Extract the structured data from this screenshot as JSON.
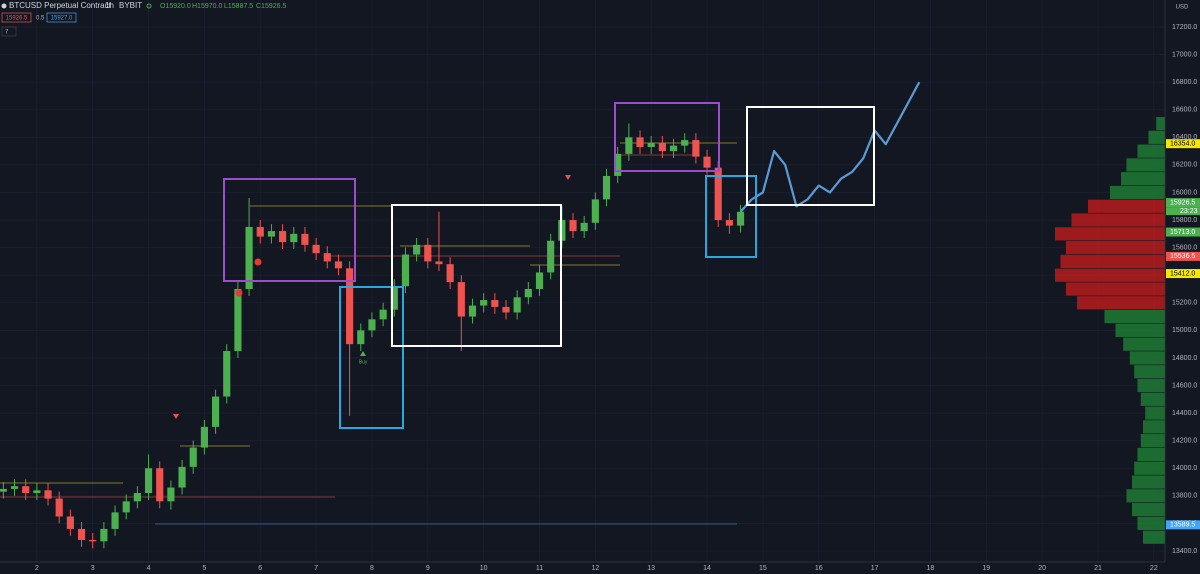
{
  "chart_data": {
    "type": "candlestick",
    "header": {
      "symbol": "BTCUSD Perpetual Contract",
      "interval": "1h",
      "exchange": "BYBIT",
      "ohlc": [
        "O15920.0",
        "H15970.0",
        "L15887.5",
        "C15926.5"
      ],
      "sell": "15926.5",
      "spread": "0.5",
      "buy": "15927.0",
      "indicators": "7"
    },
    "currency": "USD",
    "annotations": [
      "Buy"
    ],
    "up_color": "#4caf50",
    "down_color": "#ef5350",
    "grid": true,
    "xlim": [
      1.34,
      22.2
    ],
    "ylim": [
      13320,
      17396
    ],
    "xticks": [
      2,
      3,
      4,
      5,
      6,
      7,
      8,
      9,
      10,
      11,
      12,
      13,
      14,
      15,
      16,
      17,
      18,
      19,
      20,
      21,
      22
    ],
    "yticks": [
      {
        "value": 13400,
        "label": "13400.0"
      },
      {
        "value": 13600,
        "label": "13600.0"
      },
      {
        "value": 13800,
        "label": "13800.0"
      },
      {
        "value": 14000,
        "label": "14000.0"
      },
      {
        "value": 14200,
        "label": "14200.0"
      },
      {
        "value": 14400,
        "label": "14400.0"
      },
      {
        "value": 14600,
        "label": "14600.0"
      },
      {
        "value": 14800,
        "label": "14800.0"
      },
      {
        "value": 15000,
        "label": "15000.0"
      },
      {
        "value": 15200,
        "label": "15200.0"
      },
      {
        "value": 15400,
        "label": "15400.0"
      },
      {
        "value": 15600,
        "label": "15600.0"
      },
      {
        "value": 15800,
        "label": "15800.0"
      },
      {
        "value": 16000,
        "label": "16000.0"
      },
      {
        "value": 16200,
        "label": "16200.0"
      },
      {
        "value": 16400,
        "label": "16400.0"
      },
      {
        "value": 16600,
        "label": "16600.0"
      },
      {
        "value": 16800,
        "label": "16800.0"
      },
      {
        "value": 17000,
        "label": "17000.0"
      },
      {
        "value": 17200,
        "label": "17200.0"
      }
    ],
    "price_badges": [
      {
        "value": 16354,
        "label": "16354.0",
        "color": "#f5e700"
      },
      {
        "value": 15926.5,
        "label": "15926.5",
        "color": "#4caf50",
        "countdown": "23:23"
      },
      {
        "value": 15713,
        "label": "15713.0",
        "color": "#4caf50"
      },
      {
        "value": 15536.5,
        "label": "15536.5",
        "color": "#ef5350"
      },
      {
        "value": 15412,
        "label": "15412.0",
        "color": "#f5e700"
      },
      {
        "value": 13589.5,
        "label": "13589.5",
        "color": "#42a5f5"
      }
    ],
    "x": [
      1.4,
      1.6,
      1.8,
      2.0,
      2.2,
      2.4,
      2.6,
      2.8,
      3.0,
      3.2,
      3.4,
      3.6,
      3.8,
      4.0,
      4.2,
      4.4,
      4.6,
      4.8,
      5.0,
      5.2,
      5.4,
      5.6,
      5.8,
      6.0,
      6.2,
      6.4,
      6.6,
      6.8,
      7.0,
      7.2,
      7.4,
      7.6,
      7.8,
      8.0,
      8.2,
      8.4,
      8.6,
      8.8,
      9.0,
      9.2,
      9.4,
      9.6,
      9.8,
      10.0,
      10.2,
      10.4,
      10.6,
      10.8,
      11.0,
      11.2,
      11.4,
      11.6,
      11.8,
      12.0,
      12.2,
      12.4,
      12.6,
      12.8,
      13.0,
      13.2,
      13.4,
      13.6,
      13.8,
      14.0,
      14.2,
      14.4,
      14.6
    ],
    "open": [
      13830,
      13850,
      13870,
      13820,
      13840,
      13780,
      13650,
      13560,
      13480,
      13470,
      13560,
      13680,
      13760,
      13820,
      14000,
      13760,
      13860,
      14010,
      14150,
      14300,
      14520,
      14850,
      15300,
      15750,
      15680,
      15720,
      15640,
      15700,
      15620,
      15560,
      15500,
      15450,
      14900,
      15000,
      15080,
      15150,
      15320,
      15550,
      15620,
      15500,
      15480,
      15350,
      15100,
      15180,
      15220,
      15170,
      15130,
      15240,
      15300,
      15420,
      15650,
      15800,
      15720,
      15780,
      15950,
      16120,
      16280,
      16400,
      16330,
      16360,
      16300,
      16340,
      16380,
      16260,
      16180,
      15800,
      15760
    ],
    "high": [
      13900,
      13920,
      13920,
      13890,
      13890,
      13830,
      13700,
      13610,
      13530,
      13610,
      13730,
      13810,
      13870,
      14100,
      14050,
      13910,
      14060,
      14200,
      14350,
      14570,
      14900,
      15350,
      15960,
      15800,
      15770,
      15770,
      15750,
      15750,
      15670,
      15610,
      15550,
      15500,
      15050,
      15130,
      15200,
      15370,
      15600,
      15670,
      15670,
      15860,
      15530,
      15400,
      15230,
      15270,
      15270,
      15220,
      15290,
      15350,
      15470,
      15700,
      15900,
      15850,
      15830,
      16000,
      16170,
      16330,
      16500,
      16450,
      16410,
      16410,
      16390,
      16430,
      16430,
      16310,
      16230,
      15850,
      15910
    ],
    "low": [
      13780,
      13800,
      13770,
      13770,
      13730,
      13600,
      13510,
      13430,
      13420,
      13420,
      13510,
      13630,
      13710,
      13770,
      13710,
      13700,
      13810,
      13960,
      14100,
      14250,
      14470,
      14800,
      15250,
      15630,
      15630,
      15590,
      15590,
      15570,
      15510,
      15450,
      15400,
      14380,
      14850,
      14950,
      15030,
      15100,
      15270,
      15500,
      15450,
      15430,
      15300,
      14850,
      15050,
      15130,
      15120,
      15080,
      15080,
      15190,
      15250,
      15370,
      15600,
      15670,
      15670,
      15730,
      15900,
      16070,
      16230,
      16280,
      16280,
      16250,
      16250,
      16290,
      16210,
      16130,
      15750,
      15700,
      15710
    ],
    "close": [
      13850,
      13870,
      13820,
      13840,
      13780,
      13650,
      13560,
      13480,
      13470,
      13560,
      13680,
      13760,
      13820,
      14000,
      13760,
      13860,
      14010,
      14150,
      14300,
      14520,
      14850,
      15300,
      15750,
      15680,
      15720,
      15640,
      15700,
      15620,
      15560,
      15500,
      15450,
      14900,
      15000,
      15080,
      15150,
      15320,
      15550,
      15620,
      15500,
      15480,
      15350,
      15100,
      15180,
      15220,
      15170,
      15130,
      15240,
      15300,
      15420,
      15650,
      15800,
      15720,
      15780,
      15950,
      16120,
      16280,
      16400,
      16330,
      16360,
      16300,
      16340,
      16380,
      16260,
      16180,
      15800,
      15760,
      15860
    ],
    "forecast": {
      "color": "#5b9bd5",
      "x": [
        14.6,
        14.8,
        15.0,
        15.2,
        15.4,
        15.6,
        15.8,
        16.0,
        16.2,
        16.4,
        16.6,
        16.8,
        17.0,
        17.2,
        17.4,
        17.6,
        17.8
      ],
      "values": [
        15860,
        15950,
        16000,
        16300,
        16200,
        15900,
        15950,
        16050,
        16000,
        16100,
        16150,
        16250,
        16450,
        16350,
        16500,
        16650,
        16800
      ]
    },
    "profile": [
      {
        "color": "#1e7b34",
        "prices": [
          13500,
          13600,
          13700,
          13800,
          13900,
          14000,
          14100,
          14200,
          14300,
          14400,
          14500,
          14600,
          14700,
          14800,
          14900,
          15000,
          15100,
          16000,
          16100,
          16200,
          16300,
          16400,
          16500
        ],
        "values": [
          20,
          25,
          30,
          35,
          30,
          28,
          25,
          22,
          20,
          18,
          22,
          25,
          28,
          32,
          38,
          45,
          55,
          50,
          40,
          35,
          25,
          15,
          8
        ]
      },
      {
        "color": "#b71c1c",
        "prices": [
          15200,
          15300,
          15400,
          15500,
          15600,
          15700,
          15800,
          15900
        ],
        "values": [
          80,
          90,
          100,
          95,
          90,
          100,
          85,
          70
        ]
      }
    ]
  }
}
